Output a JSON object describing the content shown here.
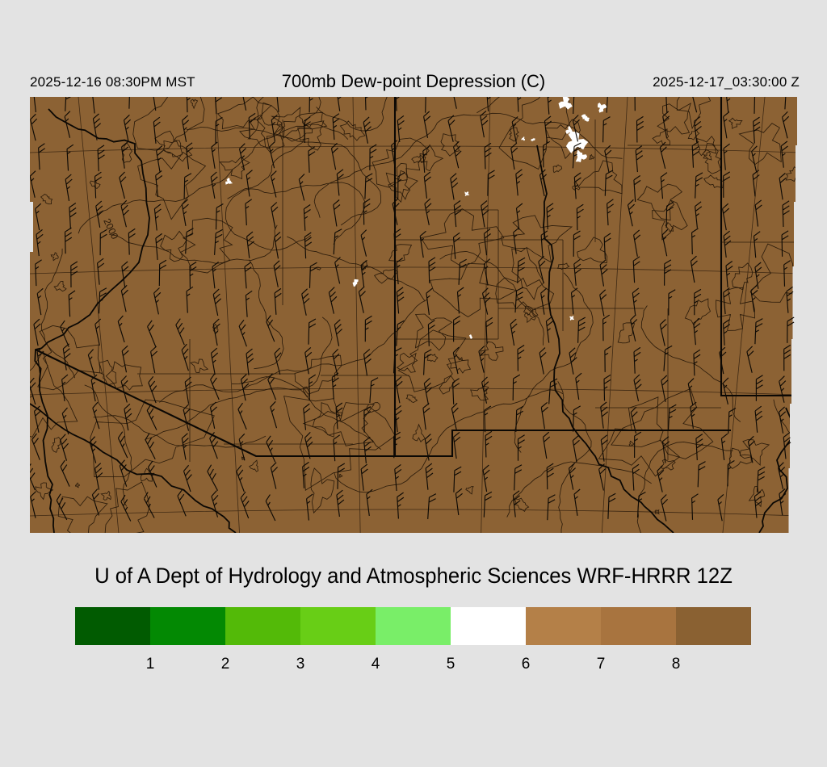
{
  "colors": {
    "background": "#e3e3e3",
    "map_fill": "#8C6234",
    "contour_line": "#241608",
    "border_line": "#0b0804",
    "barb_line": "#0e0a05",
    "white_patch": "#ffffff",
    "text": "#000000"
  },
  "header": {
    "left_timestamp": "2025-12-16 08:30PM MST",
    "title": "700mb Dew-point Depression (C)",
    "right_timestamp": "2025-12-17_03:30:00 Z"
  },
  "map": {
    "contour_label": "2000"
  },
  "caption": {
    "text": "U of A Dept of Hydrology and Atmospheric Sciences WRF-HRRR 12Z"
  },
  "colorbar": {
    "tick_labels": [
      "1",
      "2",
      "3",
      "4",
      "5",
      "6",
      "7",
      "8"
    ],
    "segment_colors": [
      "#015B01",
      "#038903",
      "#53BA08",
      "#68CE16",
      "#79EE68",
      "#FFFFFF",
      "#B48048",
      "#A8743F",
      "#8A6132"
    ]
  }
}
